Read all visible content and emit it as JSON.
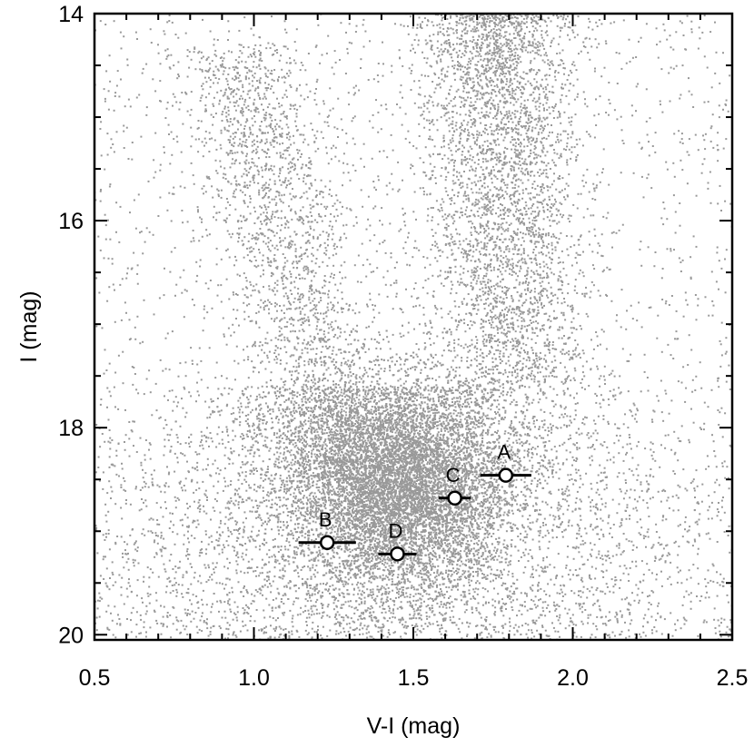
{
  "chart_data": {
    "type": "scatter",
    "title": "",
    "xlabel": "V-I (mag)",
    "ylabel": "I (mag)",
    "xlim": [
      0.5,
      2.5
    ],
    "ylim": [
      20.05,
      14.0
    ],
    "y_inverted": true,
    "grid": false,
    "x_ticks": [
      "0.5",
      "1.0",
      "1.5",
      "2.0",
      "2.5"
    ],
    "y_ticks": [
      "14",
      "16",
      "18",
      "20"
    ],
    "background_color": "#999999",
    "highlight_color": "#000000",
    "background_population": {
      "description_note": "dense cloud of gray field stars (color-magnitude diagram)",
      "dense_core": {
        "x_center": 1.45,
        "y_center": 18.5
      },
      "upper_plume": {
        "x_center": 1.8,
        "y_from": 14.0,
        "y_to": 17.5
      }
    },
    "highlighted_points": [
      {
        "label": "A",
        "x": 1.79,
        "y": 18.46,
        "xerr": 0.08
      },
      {
        "label": "B",
        "x": 1.23,
        "y": 19.11,
        "xerr": 0.09
      },
      {
        "label": "C",
        "x": 1.63,
        "y": 18.68,
        "xerr": 0.05
      },
      {
        "label": "D",
        "x": 1.45,
        "y": 19.22,
        "xerr": 0.06
      }
    ]
  }
}
